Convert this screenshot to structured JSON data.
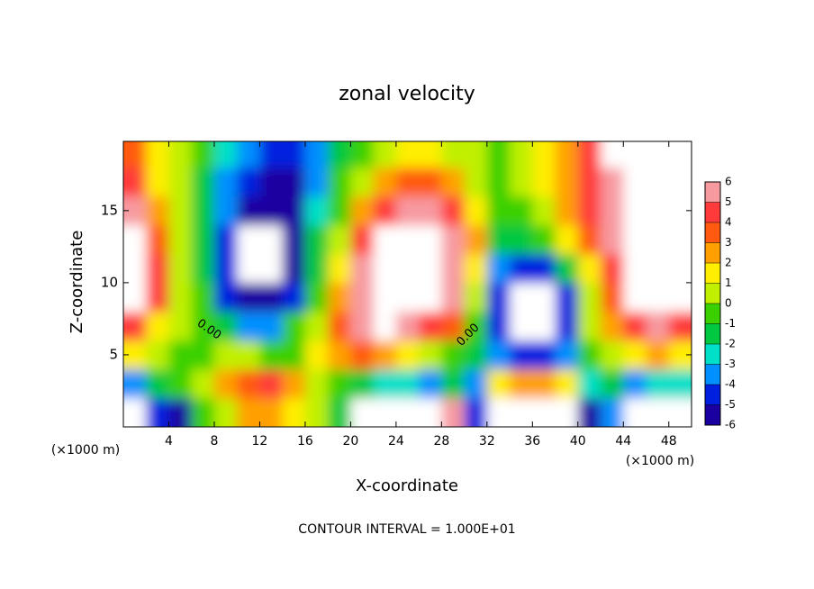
{
  "chart_data": {
    "type": "contour",
    "title": "zonal velocity",
    "x_label": "X-coordinate",
    "y_label": "Z-coordinate",
    "x_unit_label": "(×1000 m)",
    "x_unit_label_right": "(×1000 m)",
    "footer": "CONTOUR INTERVAL = 1.000E+01",
    "contour_labels": [
      "0.00",
      "0.00"
    ],
    "xlim": [
      0,
      50
    ],
    "ylim": [
      0,
      19.8
    ],
    "xticks": [
      4,
      8,
      12,
      16,
      20,
      24,
      28,
      32,
      36,
      40,
      44,
      48
    ],
    "yticks": [
      5,
      10,
      15
    ],
    "x": [
      1,
      3,
      5,
      7,
      9,
      11,
      13,
      15,
      17,
      19,
      21,
      23,
      25,
      27,
      29,
      31,
      33,
      35,
      37,
      39,
      41,
      43,
      45,
      47,
      49
    ],
    "y": [
      1,
      3,
      5,
      7,
      9,
      11,
      13,
      15,
      17,
      19
    ],
    "z": [
      [
        7,
        -4,
        -5,
        0,
        1,
        3,
        3,
        2,
        1,
        -1,
        7,
        7,
        7,
        7,
        6,
        -4,
        7,
        7,
        7,
        7,
        -5,
        -3,
        7,
        7,
        7
      ],
      [
        -3,
        -1,
        0,
        1,
        3,
        4,
        5,
        3,
        1,
        0,
        -1,
        -2,
        -2,
        -3,
        -1,
        -3,
        2,
        3,
        3,
        2,
        -2,
        -1,
        -3,
        -2,
        -2
      ],
      [
        2,
        1,
        0,
        0,
        1,
        1,
        0,
        0,
        2,
        3,
        4,
        3,
        2,
        1,
        0,
        -1,
        -3,
        -4,
        -4,
        -3,
        0,
        1,
        2,
        3,
        2
      ],
      [
        5,
        2,
        1,
        0,
        -1,
        -3,
        -3,
        0,
        1,
        4,
        6,
        7,
        6,
        5,
        4,
        0,
        -4,
        7,
        7,
        -4,
        1,
        3,
        5,
        6,
        5
      ],
      [
        7,
        5,
        1,
        0,
        -4,
        -6,
        -5,
        -4,
        0,
        3,
        6,
        7,
        7,
        7,
        6,
        1,
        -4,
        7,
        7,
        -4,
        1,
        4,
        7,
        7,
        7
      ],
      [
        7,
        5,
        1,
        -1,
        -4,
        7,
        7,
        -6,
        -1,
        2,
        6,
        7,
        7,
        7,
        6,
        2,
        -3,
        -4,
        -4,
        -1,
        2,
        5,
        7,
        7,
        7
      ],
      [
        7,
        4,
        1,
        -1,
        -4,
        7,
        7,
        -6,
        -1,
        1,
        5,
        7,
        7,
        7,
        6,
        3,
        -1,
        -1,
        0,
        2,
        4,
        6,
        7,
        7,
        7
      ],
      [
        6,
        3,
        1,
        -1,
        -3,
        -5,
        -6,
        -5,
        -2,
        0,
        3,
        5,
        6,
        6,
        5,
        2,
        0,
        0,
        1,
        3,
        5,
        6,
        7,
        7,
        7
      ],
      [
        5,
        2,
        1,
        -1,
        -3,
        -4,
        -5,
        -5,
        -3,
        0,
        1,
        3,
        4,
        4,
        3,
        1,
        0,
        1,
        2,
        3,
        5,
        6,
        7,
        7,
        7
      ],
      [
        4,
        2,
        1,
        0,
        -2,
        -3,
        -4,
        -4,
        -3,
        -1,
        0,
        1,
        2,
        2,
        1,
        1,
        0,
        1,
        2,
        3,
        5,
        7,
        7,
        7,
        7
      ]
    ],
    "colorbar": {
      "ticks": [
        6,
        5,
        4,
        3,
        2,
        1,
        0,
        -1,
        -2,
        -3,
        -4,
        -5,
        -6
      ],
      "colors": [
        "#f79aa0",
        "#ff3a3a",
        "#ff5a10",
        "#ffa000",
        "#ffee00",
        "#c0f000",
        "#3ad000",
        "#00c840",
        "#00e0c8",
        "#0090ff",
        "#0020e0",
        "#1a00a0"
      ],
      "over_color": "#ffffff"
    }
  }
}
